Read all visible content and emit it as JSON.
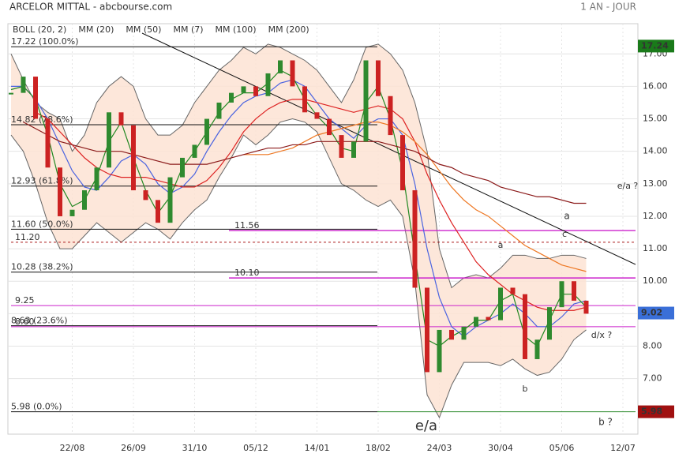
{
  "chart_data": {
    "type": "line",
    "title": "ARCELOR MITTAL - abcbourse.com",
    "subtitle": "1 AN - JOUR",
    "categories": [
      null,
      null,
      null,
      null,
      null,
      "22/08",
      null,
      null,
      null,
      null,
      "26/09",
      null,
      null,
      null,
      null,
      "31/10",
      null,
      null,
      null,
      null,
      "05/12",
      null,
      null,
      null,
      null,
      "14/01",
      null,
      null,
      null,
      null,
      "18/02",
      null,
      null,
      null,
      null,
      "24/03",
      null,
      null,
      null,
      null,
      "30/04",
      null,
      null,
      null,
      null,
      "05/06",
      null,
      null,
      null,
      null,
      "12/07",
      null
    ],
    "ylim": [
      5.29,
      17.93
    ],
    "yticks": [
      {
        "value": 7,
        "label": "7.00"
      },
      {
        "value": 8,
        "label": "8.00"
      },
      {
        "value": 9,
        "label": "9.00"
      },
      {
        "value": 10,
        "label": "10.00"
      },
      {
        "value": 11,
        "label": "11.00"
      },
      {
        "value": 12,
        "label": "12.00"
      },
      {
        "value": 13,
        "label": "13.00"
      },
      {
        "value": 14,
        "label": "14.00"
      },
      {
        "value": 15,
        "label": "15.00"
      },
      {
        "value": 16,
        "label": "16.00"
      },
      {
        "value": 17,
        "label": "17.00"
      }
    ],
    "grid": true,
    "close": {
      "color": "#2f8a2f",
      "values": [
        15.8,
        16.3,
        15.0,
        13.5,
        12.0,
        12.2,
        12.8,
        13.5,
        15.2,
        14.8,
        12.8,
        12.5,
        11.8,
        13.2,
        13.8,
        14.2,
        15.0,
        15.5,
        15.8,
        16.0,
        15.7,
        16.4,
        16.8,
        16.0,
        15.2,
        15.0,
        14.5,
        13.8,
        14.3,
        16.8,
        15.7,
        14.5,
        12.8,
        9.8,
        7.2,
        8.5,
        8.2,
        8.6,
        8.9,
        8.8,
        9.8,
        9.6,
        7.6,
        8.2,
        9.2,
        10.0,
        9.4,
        9.0,
        null,
        null,
        null,
        null
      ]
    },
    "series": [
      {
        "name": "BOLL (20, 2)",
        "color": "#666666",
        "values": [
          17.0,
          16.2,
          15.5,
          15.2,
          15.0,
          14.0,
          14.5,
          15.5,
          16.0,
          16.3,
          16.0,
          15.0,
          14.5,
          14.5,
          14.8,
          15.5,
          16.0,
          16.5,
          16.8,
          17.2,
          17.0,
          17.3,
          17.2,
          17.0,
          16.8,
          16.5,
          16.0,
          15.5,
          16.2,
          17.2,
          17.3,
          17.0,
          16.5,
          15.5,
          14.0,
          11.0,
          9.8,
          10.1,
          10.2,
          10.1,
          10.4,
          10.8,
          10.8,
          10.7,
          10.7,
          10.8,
          10.8,
          10.7,
          null,
          null,
          null,
          null
        ],
        "lower": [
          14.5,
          14.0,
          13.0,
          11.8,
          11.0,
          11.0,
          11.4,
          11.8,
          11.5,
          11.2,
          11.5,
          11.8,
          11.6,
          11.3,
          11.8,
          12.2,
          12.5,
          13.2,
          13.8,
          14.5,
          14.2,
          14.5,
          14.9,
          15.0,
          14.9,
          14.6,
          13.8,
          13.0,
          12.8,
          12.5,
          12.3,
          12.5,
          12.0,
          10.0,
          6.5,
          5.8,
          6.8,
          7.5,
          7.5,
          7.5,
          7.4,
          7.6,
          7.3,
          7.1,
          7.2,
          7.6,
          8.2,
          8.5,
          null,
          null,
          null,
          null
        ]
      },
      {
        "name": "MM (20)",
        "color": "#4a63e0",
        "values": [
          16.0,
          16.0,
          15.6,
          15.0,
          14.2,
          13.4,
          12.9,
          12.8,
          13.2,
          13.7,
          13.9,
          13.6,
          13.0,
          12.7,
          12.9,
          13.3,
          14.0,
          14.6,
          15.1,
          15.5,
          15.7,
          15.8,
          16.1,
          16.2,
          16.0,
          15.5,
          15.0,
          14.7,
          14.4,
          14.8,
          15.0,
          15.0,
          14.5,
          13.0,
          11.0,
          9.5,
          8.6,
          8.3,
          8.6,
          8.8,
          9.0,
          9.3,
          9.0,
          8.6,
          8.6,
          8.9,
          9.3,
          9.4,
          null,
          null,
          null,
          null
        ]
      },
      {
        "name": "MM (50)",
        "color": "#dd2222",
        "values": [
          null,
          null,
          15.2,
          15.0,
          14.6,
          14.2,
          13.8,
          13.5,
          13.3,
          13.2,
          13.2,
          13.2,
          13.1,
          13.0,
          12.9,
          12.9,
          13.1,
          13.5,
          14.0,
          14.6,
          15.0,
          15.3,
          15.5,
          15.6,
          15.6,
          15.5,
          15.4,
          15.3,
          15.2,
          15.3,
          15.4,
          15.3,
          15.0,
          14.3,
          13.3,
          12.5,
          11.8,
          11.2,
          10.6,
          10.2,
          9.9,
          9.6,
          9.4,
          9.2,
          9.1,
          9.1,
          9.1,
          9.2,
          null,
          null,
          null,
          null
        ]
      },
      {
        "name": "MM (7)",
        "color": "#228822",
        "values": [
          15.9,
          16.0,
          15.6,
          14.5,
          13.0,
          12.3,
          12.5,
          13.2,
          14.3,
          14.9,
          13.8,
          12.8,
          12.1,
          12.6,
          13.5,
          14.0,
          14.6,
          15.2,
          15.6,
          15.8,
          15.8,
          16.1,
          16.5,
          16.3,
          15.6,
          15.1,
          14.7,
          14.1,
          14.0,
          15.5,
          16.0,
          15.0,
          13.4,
          10.8,
          8.2,
          8.0,
          8.3,
          8.5,
          8.8,
          8.8,
          9.4,
          9.6,
          8.3,
          8.0,
          8.8,
          9.6,
          9.6,
          9.2,
          null,
          null,
          null,
          null
        ]
      },
      {
        "name": "MM (100)",
        "color": "#ee7722",
        "values": [
          null,
          null,
          null,
          null,
          null,
          null,
          null,
          null,
          null,
          null,
          null,
          null,
          null,
          null,
          null,
          null,
          null,
          null,
          null,
          13.9,
          13.9,
          13.9,
          14.0,
          14.1,
          14.3,
          14.5,
          14.6,
          14.7,
          14.8,
          14.9,
          14.9,
          14.8,
          14.6,
          14.3,
          13.9,
          13.4,
          12.9,
          12.5,
          12.2,
          12.0,
          11.7,
          11.4,
          11.1,
          10.9,
          10.7,
          10.5,
          10.4,
          10.3,
          null,
          null,
          null,
          null
        ]
      },
      {
        "name": "MM (200)",
        "color": "#8b1a1a",
        "values": [
          null,
          14.9,
          14.7,
          14.5,
          14.3,
          14.2,
          14.1,
          14.0,
          14.0,
          14.0,
          13.9,
          13.8,
          13.7,
          13.6,
          13.6,
          13.6,
          13.6,
          13.7,
          13.8,
          13.9,
          14.0,
          14.1,
          14.1,
          14.2,
          14.2,
          14.3,
          14.3,
          14.3,
          14.3,
          14.3,
          14.3,
          14.2,
          14.1,
          14.0,
          13.8,
          13.6,
          13.5,
          13.3,
          13.2,
          13.1,
          12.9,
          12.8,
          12.7,
          12.6,
          12.6,
          12.5,
          12.4,
          12.4,
          null,
          null,
          null,
          null
        ]
      }
    ],
    "fib_levels": [
      {
        "value": 17.22,
        "label": "17.22 (100.0%)"
      },
      {
        "value": 14.82,
        "label": "14.82 (78.6%)"
      },
      {
        "value": 12.93,
        "label": "12.93 (61.8%)"
      },
      {
        "value": 11.6,
        "label": "11.60 (50.0%)"
      },
      {
        "value": 10.28,
        "label": "10.28 (38.2%)"
      },
      {
        "value": 8.63,
        "label": "8.63 (23.6%)"
      },
      {
        "value": 5.98,
        "label": "5.98 (0.0%)"
      }
    ],
    "levels": [
      {
        "value": 11.56,
        "label": "11.56",
        "color": "#cc22cc"
      },
      {
        "value": 10.1,
        "label": "10.10",
        "color": "#cc22cc"
      },
      {
        "value": 11.2,
        "label": "11.20",
        "color": "#aa1a1a"
      },
      {
        "value": 9.25,
        "label": "9.25",
        "color": "#cc22cc"
      },
      {
        "value": 8.6,
        "label": "8.60",
        "color": "#cc22cc"
      }
    ],
    "badges": [
      {
        "value": 17.24,
        "label": "17.24",
        "color": "#1a7a1a"
      },
      {
        "value": 9.02,
        "label": "9.02",
        "color": "#3a6fd8"
      },
      {
        "value": 5.98,
        "label": "5.98",
        "color": "#a01010"
      }
    ],
    "annotations": [
      "e/a",
      "e/a ?",
      "a",
      "c",
      "a",
      "b",
      "d/x ?",
      "b ?"
    ]
  }
}
